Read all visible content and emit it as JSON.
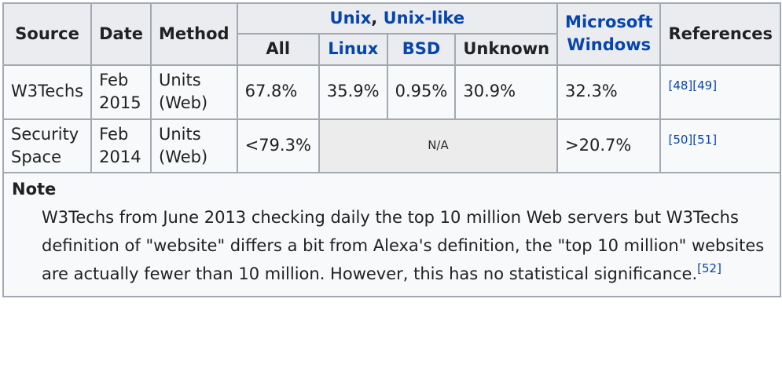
{
  "header": {
    "source": "Source",
    "date": "Date",
    "method": "Method",
    "group_unix": {
      "part1": "Unix",
      "separator": ", ",
      "part2": "Unix-like"
    },
    "microsoft_windows_line1": "Microsoft",
    "microsoft_windows_line2": "Windows",
    "references": "References",
    "sub": {
      "all": "All",
      "linux": "Linux",
      "bsd": "BSD",
      "unknown": "Unknown"
    }
  },
  "rows": [
    {
      "source": "W3Techs",
      "date_line1": "Feb",
      "date_line2": "2015",
      "method_line1": "Units",
      "method_line2": "(Web)",
      "all": "67.8%",
      "linux": "35.9%",
      "bsd": "0.95%",
      "unknown": "30.9%",
      "windows": "32.3%",
      "refs": [
        "[48]",
        "[49]"
      ]
    },
    {
      "source_line1": "Security",
      "source_line2": "Space",
      "date_line1": "Feb",
      "date_line2": "2014",
      "method_line1": "Units",
      "method_line2": "(Web)",
      "all": "<79.3%",
      "na": "N/A",
      "windows": ">20.7%",
      "refs": [
        "[50]",
        "[51]"
      ]
    }
  ],
  "note": {
    "title": "Note",
    "text": "W3Techs from June 2013 checking daily the top 10 million Web servers but W3Techs definition of \"website\" differs a bit from Alexa's definition, the \"top 10 million\" websites are actually fewer than 10 million. However, this has no statistical significance.",
    "ref": "[52]"
  },
  "colors": {
    "link": "#0645ad",
    "header_bg": "#eaecf0",
    "cell_bg": "#f8f9fa",
    "border": "#a2a9b1",
    "na_bg": "#ececec"
  }
}
